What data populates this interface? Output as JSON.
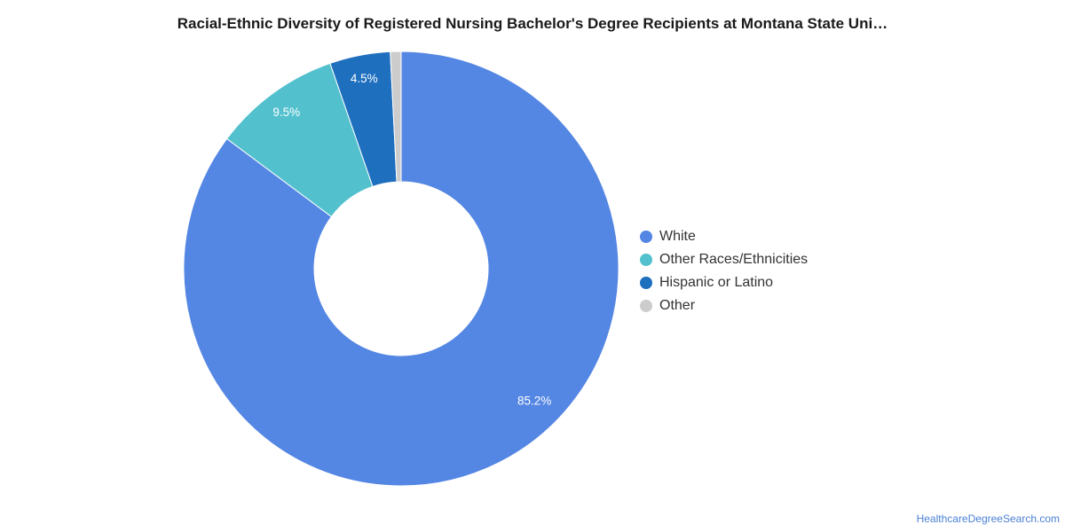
{
  "chart_data": {
    "type": "pie",
    "variant": "donut",
    "title": "Racial-Ethnic Diversity of Registered Nursing Bachelor's Degree Recipients at Montana State Uni…",
    "slices": [
      {
        "name": "White",
        "value": 85.2,
        "label": "85.2%",
        "color": "#5486e3"
      },
      {
        "name": "Other Races/Ethnicities",
        "value": 9.5,
        "label": "9.5%",
        "color": "#52c1cd"
      },
      {
        "name": "Hispanic or Latino",
        "value": 4.5,
        "label": "4.5%",
        "color": "#1f6fbf"
      },
      {
        "name": "Other",
        "value": 0.8,
        "label": "",
        "color": "#cccccc"
      }
    ],
    "legend_position": "right"
  },
  "credit": "HealthcareDegreeSearch.com"
}
